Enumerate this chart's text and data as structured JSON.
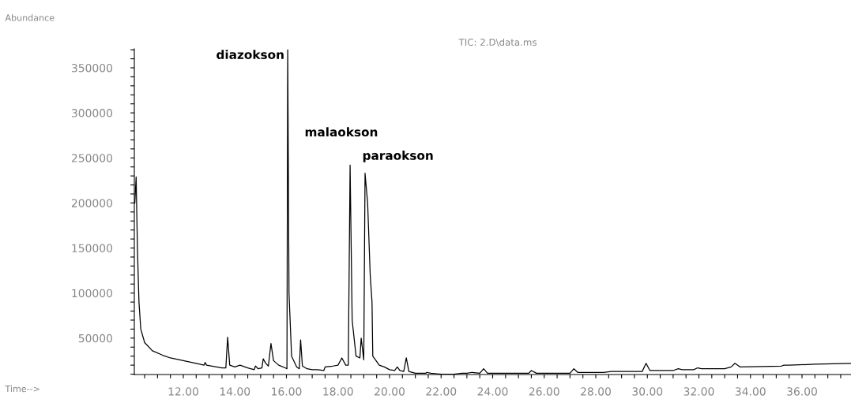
{
  "chart_data": {
    "type": "line",
    "title": "TIC: 2.D\\data.ms",
    "xlabel": "Time-->",
    "ylabel": "Abundance",
    "annotations": [
      {
        "text": "diazokson",
        "x": 16.05,
        "y": 370000
      },
      {
        "text": "malaokson",
        "x": 18.47,
        "y": 242000
      },
      {
        "text": "paraokson",
        "x": 19.05,
        "y": 233000
      }
    ],
    "xlim": [
      10.1,
      37.9
    ],
    "ylim": [
      9600,
      371000
    ],
    "grid": false,
    "marker": "none",
    "line_style": "solid",
    "xticks": [
      {
        "value": 10.5,
        "label": null
      },
      {
        "value": 11,
        "label": null
      },
      {
        "value": 11.5,
        "label": null
      },
      {
        "value": 12,
        "label": "12.00"
      },
      {
        "value": 12.5,
        "label": null
      },
      {
        "value": 13,
        "label": null
      },
      {
        "value": 13.5,
        "label": null
      },
      {
        "value": 14,
        "label": "14.00"
      },
      {
        "value": 14.5,
        "label": null
      },
      {
        "value": 15,
        "label": null
      },
      {
        "value": 15.5,
        "label": null
      },
      {
        "value": 16,
        "label": "16.00"
      },
      {
        "value": 16.5,
        "label": null
      },
      {
        "value": 17,
        "label": null
      },
      {
        "value": 17.5,
        "label": null
      },
      {
        "value": 18,
        "label": "18.00"
      },
      {
        "value": 18.5,
        "label": null
      },
      {
        "value": 19,
        "label": null
      },
      {
        "value": 19.5,
        "label": null
      },
      {
        "value": 20,
        "label": "20.00"
      },
      {
        "value": 20.5,
        "label": null
      },
      {
        "value": 21,
        "label": null
      },
      {
        "value": 21.5,
        "label": null
      },
      {
        "value": 22,
        "label": "22.00"
      },
      {
        "value": 22.5,
        "label": null
      },
      {
        "value": 23,
        "label": null
      },
      {
        "value": 23.5,
        "label": null
      },
      {
        "value": 24,
        "label": "24.00"
      },
      {
        "value": 24.5,
        "label": null
      },
      {
        "value": 25,
        "label": null
      },
      {
        "value": 25.5,
        "label": null
      },
      {
        "value": 26,
        "label": "26.00"
      },
      {
        "value": 26.5,
        "label": null
      },
      {
        "value": 27,
        "label": null
      },
      {
        "value": 27.5,
        "label": null
      },
      {
        "value": 28,
        "label": "28.00"
      },
      {
        "value": 28.5,
        "label": null
      },
      {
        "value": 29,
        "label": null
      },
      {
        "value": 29.5,
        "label": null
      },
      {
        "value": 30,
        "label": "30.00"
      },
      {
        "value": 30.5,
        "label": null
      },
      {
        "value": 31,
        "label": null
      },
      {
        "value": 31.5,
        "label": null
      },
      {
        "value": 32,
        "label": "32.00"
      },
      {
        "value": 32.5,
        "label": null
      },
      {
        "value": 33,
        "label": null
      },
      {
        "value": 33.5,
        "label": null
      },
      {
        "value": 34,
        "label": "34.00"
      },
      {
        "value": 34.5,
        "label": null
      },
      {
        "value": 35,
        "label": null
      },
      {
        "value": 35.5,
        "label": null
      },
      {
        "value": 36,
        "label": "36.00"
      },
      {
        "value": 36.5,
        "label": null
      },
      {
        "value": 37,
        "label": null
      },
      {
        "value": 37.5,
        "label": null
      }
    ],
    "yticks": [
      {
        "value": 10000,
        "label": null
      },
      {
        "value": 20000,
        "label": null
      },
      {
        "value": 30000,
        "label": null
      },
      {
        "value": 40000,
        "label": null
      },
      {
        "value": 50000,
        "label": "50000"
      },
      {
        "value": 60000,
        "label": null
      },
      {
        "value": 70000,
        "label": null
      },
      {
        "value": 80000,
        "label": null
      },
      {
        "value": 90000,
        "label": null
      },
      {
        "value": 100000,
        "label": "100000"
      },
      {
        "value": 110000,
        "label": null
      },
      {
        "value": 120000,
        "label": null
      },
      {
        "value": 130000,
        "label": null
      },
      {
        "value": 140000,
        "label": null
      },
      {
        "value": 150000,
        "label": "150000"
      },
      {
        "value": 160000,
        "label": null
      },
      {
        "value": 170000,
        "label": null
      },
      {
        "value": 180000,
        "label": null
      },
      {
        "value": 190000,
        "label": null
      },
      {
        "value": 200000,
        "label": "200000"
      },
      {
        "value": 210000,
        "label": null
      },
      {
        "value": 220000,
        "label": null
      },
      {
        "value": 230000,
        "label": null
      },
      {
        "value": 240000,
        "label": null
      },
      {
        "value": 250000,
        "label": "250000"
      },
      {
        "value": 260000,
        "label": null
      },
      {
        "value": 270000,
        "label": null
      },
      {
        "value": 280000,
        "label": null
      },
      {
        "value": 290000,
        "label": null
      },
      {
        "value": 300000,
        "label": "300000"
      },
      {
        "value": 310000,
        "label": null
      },
      {
        "value": 320000,
        "label": null
      },
      {
        "value": 330000,
        "label": null
      },
      {
        "value": 340000,
        "label": null
      },
      {
        "value": 350000,
        "label": "350000"
      },
      {
        "value": 360000,
        "label": null
      },
      {
        "value": 370000,
        "label": null
      }
    ],
    "series": [
      {
        "color": "#000000",
        "x": [
          10.12,
          10.17,
          10.22,
          10.28,
          10.35,
          10.5,
          10.8,
          11.2,
          11.5,
          12.0,
          12.5,
          12.8,
          12.85,
          12.9,
          13.5,
          13.65,
          13.72,
          13.8,
          14.0,
          14.2,
          14.5,
          14.75,
          14.8,
          14.9,
          15.05,
          15.1,
          15.2,
          15.3,
          15.4,
          15.5,
          15.7,
          15.95,
          16.02,
          16.05,
          16.1,
          16.2,
          16.4,
          16.5,
          16.55,
          16.62,
          16.8,
          17.0,
          17.2,
          17.45,
          17.5,
          17.8,
          18.0,
          18.15,
          18.3,
          18.4,
          18.47,
          18.55,
          18.7,
          18.85,
          18.9,
          19.0,
          19.05,
          19.15,
          19.25,
          19.32,
          19.35,
          19.6,
          19.8,
          20.0,
          20.2,
          20.3,
          20.4,
          20.55,
          20.65,
          20.75,
          21.0,
          21.4,
          21.45,
          21.6,
          22.0,
          22.5,
          22.8,
          23.0,
          23.2,
          23.5,
          23.65,
          23.8,
          24.5,
          25.4,
          25.5,
          25.7,
          27.0,
          27.15,
          27.3,
          28.3,
          28.6,
          28.8,
          29.8,
          29.95,
          30.1,
          31.0,
          31.2,
          31.35,
          31.8,
          31.95,
          32.1,
          33.0,
          33.25,
          33.4,
          33.6,
          35.2,
          35.3,
          35.5,
          36.5,
          37.9
        ],
        "values": [
          200000,
          229000,
          150000,
          90000,
          60000,
          45000,
          36000,
          31000,
          28000,
          25000,
          22000,
          20000,
          23000,
          20000,
          17000,
          17000,
          51000,
          20000,
          18000,
          20000,
          17000,
          15000,
          19000,
          16000,
          17000,
          27000,
          22000,
          19000,
          44000,
          25000,
          20000,
          17000,
          16000,
          370000,
          100000,
          30000,
          18000,
          16000,
          48000,
          19000,
          16000,
          15000,
          15000,
          14000,
          18000,
          19000,
          20000,
          28000,
          20000,
          20000,
          242000,
          70000,
          30000,
          28000,
          50000,
          26000,
          233000,
          200000,
          120000,
          90000,
          30000,
          20000,
          18000,
          15000,
          14000,
          18000,
          14000,
          13000,
          28000,
          13000,
          11000,
          11000,
          12000,
          11000,
          10000,
          10000,
          11000,
          11000,
          12000,
          11000,
          16000,
          11000,
          11000,
          11000,
          14000,
          11000,
          11000,
          16000,
          12000,
          12000,
          13000,
          13000,
          13000,
          22000,
          14000,
          14000,
          16000,
          15000,
          15000,
          17000,
          16000,
          16000,
          18000,
          22000,
          18000,
          19000,
          20000,
          20000,
          21000,
          22000
        ]
      }
    ]
  }
}
